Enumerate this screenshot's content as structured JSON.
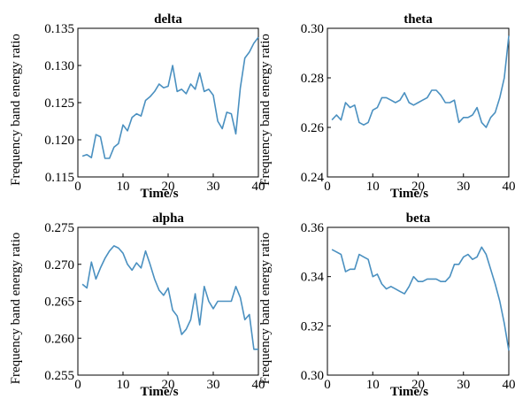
{
  "chart_data": [
    {
      "type": "line",
      "title": "delta",
      "xlabel": "Time/s",
      "ylabel": "Frequency band energy ratio",
      "xlim": [
        0,
        40
      ],
      "ylim": [
        0.115,
        0.135
      ],
      "xticks": [
        "0",
        "10",
        "20",
        "30",
        "40"
      ],
      "yticks": [
        "0.115",
        "0.120",
        "0.125",
        "0.130",
        "0.135"
      ],
      "x": [
        1,
        2,
        3,
        4,
        5,
        6,
        7,
        8,
        9,
        10,
        11,
        12,
        13,
        14,
        15,
        16,
        17,
        18,
        19,
        20,
        21,
        22,
        23,
        24,
        25,
        26,
        27,
        28,
        29,
        30,
        31,
        32,
        33,
        34,
        35,
        36,
        37,
        38,
        39,
        40
      ],
      "values": [
        0.1178,
        0.118,
        0.1176,
        0.1207,
        0.1204,
        0.1175,
        0.1175,
        0.119,
        0.1195,
        0.122,
        0.1212,
        0.123,
        0.1235,
        0.1232,
        0.1253,
        0.1258,
        0.1265,
        0.1275,
        0.127,
        0.1272,
        0.13,
        0.1265,
        0.1268,
        0.1262,
        0.1275,
        0.1268,
        0.129,
        0.1265,
        0.1268,
        0.126,
        0.1225,
        0.1215,
        0.1237,
        0.1235,
        0.1208,
        0.127,
        0.131,
        0.1318,
        0.133,
        0.1338
      ]
    },
    {
      "type": "line",
      "title": "theta",
      "xlabel": "Time/s",
      "ylabel": "Frequency band energy ratio",
      "xlim": [
        0,
        40
      ],
      "ylim": [
        0.24,
        0.3
      ],
      "xticks": [
        "0",
        "10",
        "20",
        "30",
        "40"
      ],
      "yticks": [
        "0.24",
        "0.26",
        "0.28",
        "0.30"
      ],
      "x": [
        1,
        2,
        3,
        4,
        5,
        6,
        7,
        8,
        9,
        10,
        11,
        12,
        13,
        14,
        15,
        16,
        17,
        18,
        19,
        20,
        21,
        22,
        23,
        24,
        25,
        26,
        27,
        28,
        29,
        30,
        31,
        32,
        33,
        34,
        35,
        36,
        37,
        38,
        39,
        40
      ],
      "values": [
        0.263,
        0.265,
        0.263,
        0.27,
        0.268,
        0.269,
        0.262,
        0.261,
        0.262,
        0.267,
        0.268,
        0.272,
        0.272,
        0.271,
        0.27,
        0.271,
        0.274,
        0.27,
        0.269,
        0.27,
        0.271,
        0.272,
        0.275,
        0.275,
        0.273,
        0.27,
        0.27,
        0.271,
        0.262,
        0.264,
        0.264,
        0.265,
        0.268,
        0.262,
        0.26,
        0.264,
        0.266,
        0.272,
        0.28,
        0.297
      ]
    },
    {
      "type": "line",
      "title": "alpha",
      "xlabel": "Time/s",
      "ylabel": "Frequency band energy ratio",
      "xlim": [
        0,
        40
      ],
      "ylim": [
        0.255,
        0.275
      ],
      "xticks": [
        "0",
        "10",
        "20",
        "30",
        "40"
      ],
      "yticks": [
        "0.255",
        "0.260",
        "0.265",
        "0.270",
        "0.275"
      ],
      "x": [
        1,
        2,
        3,
        4,
        5,
        6,
        7,
        8,
        9,
        10,
        11,
        12,
        13,
        14,
        15,
        16,
        17,
        18,
        19,
        20,
        21,
        22,
        23,
        24,
        25,
        26,
        27,
        28,
        29,
        30,
        31,
        32,
        33,
        34,
        35,
        36,
        37,
        38,
        39,
        40
      ],
      "values": [
        0.2673,
        0.2668,
        0.2703,
        0.268,
        0.2695,
        0.2708,
        0.2718,
        0.2725,
        0.2722,
        0.2715,
        0.27,
        0.2692,
        0.2702,
        0.2695,
        0.2718,
        0.27,
        0.268,
        0.2665,
        0.2658,
        0.2668,
        0.2638,
        0.263,
        0.2605,
        0.2612,
        0.2625,
        0.266,
        0.2618,
        0.267,
        0.265,
        0.264,
        0.265,
        0.265,
        0.265,
        0.265,
        0.267,
        0.2655,
        0.2625,
        0.2632,
        0.2585,
        0.2585
      ]
    },
    {
      "type": "line",
      "title": "beta",
      "xlabel": "Time/s",
      "ylabel": "Frequency band energy ratio",
      "xlim": [
        0,
        40
      ],
      "ylim": [
        0.3,
        0.36
      ],
      "xticks": [
        "0",
        "10",
        "20",
        "30",
        "40"
      ],
      "yticks": [
        "0.30",
        "0.32",
        "0.34",
        "0.36"
      ],
      "x": [
        1,
        2,
        3,
        4,
        5,
        6,
        7,
        8,
        9,
        10,
        11,
        12,
        13,
        14,
        15,
        16,
        17,
        18,
        19,
        20,
        21,
        22,
        23,
        24,
        25,
        26,
        27,
        28,
        29,
        30,
        31,
        32,
        33,
        34,
        35,
        36,
        37,
        38,
        39,
        40
      ],
      "values": [
        0.351,
        0.35,
        0.349,
        0.342,
        0.343,
        0.343,
        0.349,
        0.348,
        0.347,
        0.34,
        0.341,
        0.337,
        0.335,
        0.336,
        0.335,
        0.334,
        0.333,
        0.336,
        0.34,
        0.338,
        0.338,
        0.339,
        0.339,
        0.339,
        0.338,
        0.338,
        0.34,
        0.345,
        0.345,
        0.348,
        0.349,
        0.347,
        0.348,
        0.352,
        0.349,
        0.343,
        0.337,
        0.33,
        0.321,
        0.31
      ]
    }
  ]
}
